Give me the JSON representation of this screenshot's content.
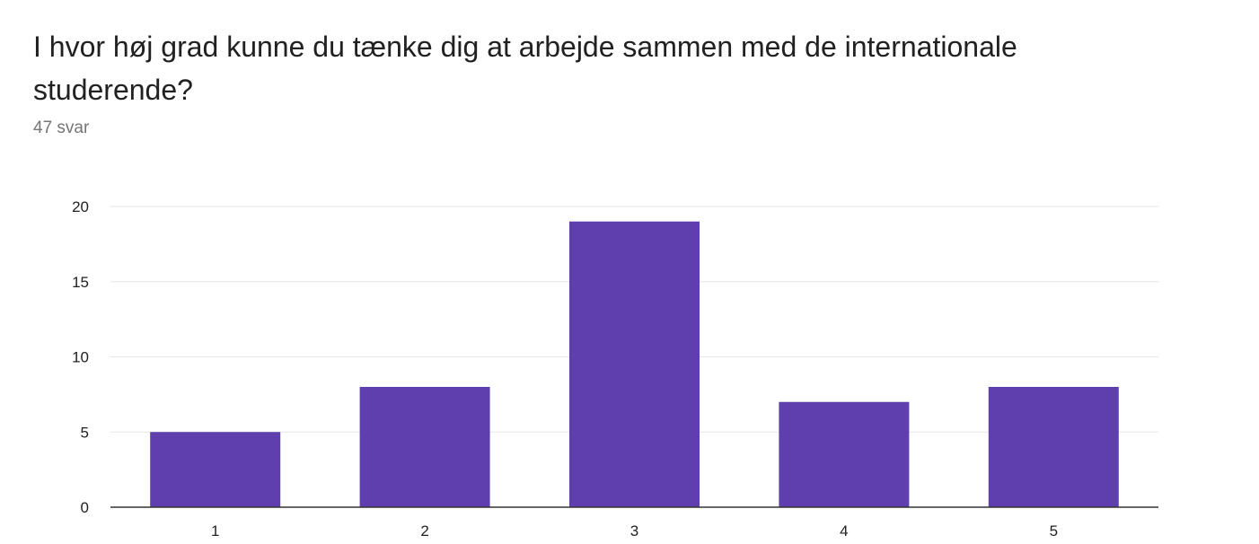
{
  "question": {
    "title": "I hvor høj grad kunne du tænke dig at arbejde sammen med de internationale studerende?",
    "response_count": "47 svar"
  },
  "colors": {
    "bar": "#5e3fad",
    "grid": "#e6e6e6",
    "baseline": "#333333"
  },
  "chart_data": {
    "type": "bar",
    "categories": [
      "1",
      "2",
      "3",
      "4",
      "5"
    ],
    "values": [
      5,
      8,
      19,
      7,
      8
    ],
    "title": "",
    "xlabel": "",
    "ylabel": "",
    "ylim": [
      0,
      20
    ],
    "yticks": [
      0,
      5,
      10,
      15,
      20
    ],
    "grid": true,
    "legend": "none"
  }
}
